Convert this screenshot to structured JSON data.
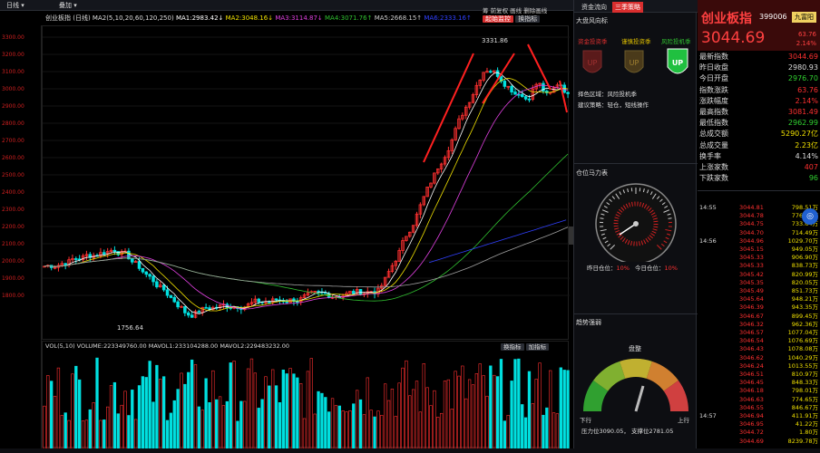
{
  "toolbar1": {
    "period": "日线",
    "overlay": "叠加",
    "right_tabs": [
      "资金流向",
      "三季策略"
    ]
  },
  "toolbar2": {
    "title": "创业板指 (日线)",
    "ma_text": "MA2(5,10,20,60,120,250)",
    "ma1": "MA1:2983.42↓",
    "ma2": "MA2:3048.16↓",
    "ma3": "MA3:3114.87↓",
    "ma4": "MA4:3071.76↑",
    "ma5": "MA5:2668.15↑",
    "ma6": "MA6:2333.16↑",
    "btn_start": "起始监控",
    "btn_switch": "换指标",
    "rbtns": [
      "筹",
      "前复权",
      "画线",
      "删除画线"
    ]
  },
  "chart": {
    "price_ticks": [
      "3300.00",
      "3200.00",
      "3100.00",
      "3000.00",
      "2900.00",
      "2800.00",
      "2700.00",
      "2600.00",
      "2500.00",
      "2400.00",
      "2300.00",
      "2200.00",
      "2100.00",
      "2000.00",
      "1900.00",
      "1800.00"
    ],
    "high_label": "3331.86",
    "low_label": "1756.64"
  },
  "volume": {
    "header": "VOL(5,10)  VOLUME:223349760.00  MAVOL1:233104288.00  MAVOL2:229483232.00",
    "btn1": "换指标",
    "btn2": "加指标"
  },
  "mid_panel": {
    "title1": "大盘风向标",
    "seasons": [
      "资金投资季",
      "谨慎投资季",
      "风险投机季"
    ],
    "strategy_line1": "择色区域：风险投机季",
    "strategy_line2": "建议策略：轻仓，短线操作",
    "title2": "仓位马力表",
    "yday_pos_label": "昨日仓位：",
    "yday_pos": "10%",
    "today_pos_label": "今日仓位：",
    "today_pos": "10%",
    "title3": "趋势强弱",
    "gauge_state": "盘整",
    "left_label": "下行",
    "right_label": "上行",
    "pressure_text": "压力位3090.05， 支撑位2781.05"
  },
  "right_panel": {
    "name": "创业板指",
    "code": "399006",
    "badge": "九富阳",
    "price": "3044.69",
    "change": "63.76",
    "pct": "2.14%",
    "rows": [
      {
        "label": "最新指数",
        "value": "3044.69",
        "color": "#ff3030"
      },
      {
        "label": "昨日收盘",
        "value": "2980.93",
        "color": "#dddddd"
      },
      {
        "label": "今日开盘",
        "value": "2976.70",
        "color": "#30d030"
      },
      {
        "label": "指数涨跌",
        "value": "63.76",
        "color": "#ff3030"
      },
      {
        "label": "涨跌幅度",
        "value": "2.14%",
        "color": "#ff3030"
      },
      {
        "label": "最高指数",
        "value": "3081.49",
        "color": "#ff3030"
      },
      {
        "label": "最低指数",
        "value": "2962.99",
        "color": "#30d030"
      },
      {
        "label": "总成交额",
        "value": "5290.27亿",
        "color": "#f0e000"
      },
      {
        "label": "总成交量",
        "value": "2.23亿",
        "color": "#f0e000"
      },
      {
        "label": "换手率",
        "value": "4.14%",
        "color": "#dddddd"
      },
      {
        "label": "上涨家数",
        "value": "407",
        "color": "#ff3030"
      },
      {
        "label": "下跌家数",
        "value": "96",
        "color": "#30d030"
      }
    ],
    "ticks": [
      {
        "time": "14:55",
        "price": "3044.81",
        "vol": "798.51万"
      },
      {
        "time": "",
        "price": "3044.78",
        "vol": "776.28万"
      },
      {
        "time": "",
        "price": "3044.75",
        "vol": "733.64万"
      },
      {
        "time": "",
        "price": "3044.70",
        "vol": "714.49万"
      },
      {
        "time": "14:56",
        "price": "3044.96",
        "vol": "1029.70万"
      },
      {
        "time": "",
        "price": "3045.15",
        "vol": "949.05万"
      },
      {
        "time": "",
        "price": "3045.33",
        "vol": "906.90万"
      },
      {
        "time": "",
        "price": "3045.33",
        "vol": "838.73万"
      },
      {
        "time": "",
        "price": "3045.42",
        "vol": "820.99万"
      },
      {
        "time": "",
        "price": "3045.35",
        "vol": "820.05万"
      },
      {
        "time": "",
        "price": "3045.49",
        "vol": "851.73万"
      },
      {
        "time": "",
        "price": "3045.64",
        "vol": "948.21万"
      },
      {
        "time": "",
        "price": "3046.39",
        "vol": "943.35万"
      },
      {
        "time": "",
        "price": "3046.67",
        "vol": "899.45万"
      },
      {
        "time": "",
        "price": "3046.32",
        "vol": "962.36万"
      },
      {
        "time": "",
        "price": "3046.57",
        "vol": "1077.04万"
      },
      {
        "time": "",
        "price": "3046.54",
        "vol": "1076.69万"
      },
      {
        "time": "",
        "price": "3046.43",
        "vol": "1078.08万"
      },
      {
        "time": "",
        "price": "3046.62",
        "vol": "1040.29万"
      },
      {
        "time": "",
        "price": "3046.24",
        "vol": "1013.55万"
      },
      {
        "time": "",
        "price": "3046.51",
        "vol": "810.97万"
      },
      {
        "time": "",
        "price": "3046.45",
        "vol": "848.33万"
      },
      {
        "time": "",
        "price": "3046.18",
        "vol": "798.01万"
      },
      {
        "time": "",
        "price": "3046.63",
        "vol": "774.65万"
      },
      {
        "time": "",
        "price": "3046.55",
        "vol": "846.67万"
      },
      {
        "time": "14:57",
        "price": "3046.94",
        "vol": "411.91万"
      },
      {
        "time": "",
        "price": "3046.95",
        "vol": "41.22万"
      },
      {
        "time": "",
        "price": "3044.72",
        "vol": "1.80万"
      },
      {
        "time": "",
        "price": "3044.69",
        "vol": "8239.78万"
      }
    ]
  },
  "colors": {
    "up": "#ff3030",
    "down": "#00e0e0",
    "accent": "#d92e2e",
    "ma1": "#ffffff",
    "ma2": "#f0e000",
    "ma3": "#e040e0",
    "ma4": "#30c030",
    "ma5": "#a0a0a0",
    "ma6": "#3040ff"
  }
}
